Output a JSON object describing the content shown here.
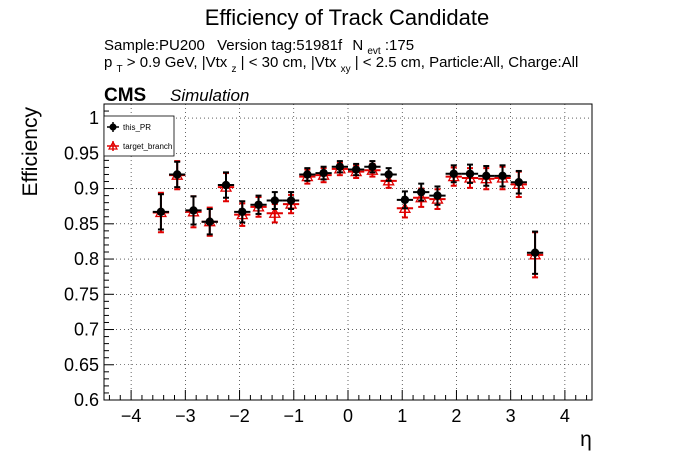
{
  "chart_data": {
    "type": "scatter",
    "title": "Efficiency of Track Candidate",
    "subtitle_line1": {
      "sample": "Sample:PU200",
      "version": "Version tag:51981f",
      "nevt_label": "N",
      "nevt_sub": "evt",
      "nevt_value": ":175"
    },
    "subtitle_line2": {
      "p": "p",
      "p_sub": "T",
      "part1": " > 0.9 GeV, |Vtx",
      "z_sub": "z",
      "part2": "| < 30 cm, |Vtx",
      "xy_sub": "xy",
      "part3": "| < 2.5 cm, Particle:All, Charge:All"
    },
    "cms_label": "CMS",
    "cms_sublabel": "Simulation",
    "xlabel": "η",
    "ylabel": "Efficiency",
    "xlim": [
      -4.5,
      4.5
    ],
    "ylim": [
      0.6,
      1.02
    ],
    "x_ticks": [
      "−4",
      "−3",
      "−2",
      "−1",
      "0",
      "1",
      "2",
      "3",
      "4"
    ],
    "x_tick_values": [
      -4,
      -3,
      -2,
      -1,
      0,
      1,
      2,
      3,
      4
    ],
    "y_ticks": [
      "0.6",
      "0.65",
      "0.7",
      "0.75",
      "0.8",
      "0.85",
      "0.9",
      "0.95",
      "1"
    ],
    "y_tick_values": [
      0.6,
      0.65,
      0.7,
      0.75,
      0.8,
      0.85,
      0.9,
      0.95,
      1.0
    ],
    "grid": true,
    "legend_position": "top-left",
    "x_half_width": 0.15,
    "series": [
      {
        "name": "this_PR",
        "color": "#000000",
        "marker": "filled-circle",
        "points": [
          {
            "x": -3.45,
            "y": 0.867,
            "err": 0.025
          },
          {
            "x": -3.15,
            "y": 0.92,
            "err": 0.018
          },
          {
            "x": -2.85,
            "y": 0.869,
            "err": 0.02
          },
          {
            "x": -2.55,
            "y": 0.853,
            "err": 0.018
          },
          {
            "x": -2.25,
            "y": 0.905,
            "err": 0.018
          },
          {
            "x": -1.95,
            "y": 0.867,
            "err": 0.015
          },
          {
            "x": -1.65,
            "y": 0.877,
            "err": 0.013
          },
          {
            "x": -1.35,
            "y": 0.883,
            "err": 0.012
          },
          {
            "x": -1.05,
            "y": 0.883,
            "err": 0.012
          },
          {
            "x": -0.75,
            "y": 0.92,
            "err": 0.009
          },
          {
            "x": -0.45,
            "y": 0.922,
            "err": 0.009
          },
          {
            "x": -0.15,
            "y": 0.931,
            "err": 0.008
          },
          {
            "x": 0.15,
            "y": 0.927,
            "err": 0.008
          },
          {
            "x": 0.45,
            "y": 0.931,
            "err": 0.008
          },
          {
            "x": 0.75,
            "y": 0.92,
            "err": 0.009
          },
          {
            "x": 1.05,
            "y": 0.884,
            "err": 0.012
          },
          {
            "x": 1.35,
            "y": 0.895,
            "err": 0.012
          },
          {
            "x": 1.65,
            "y": 0.89,
            "err": 0.013
          },
          {
            "x": 1.95,
            "y": 0.921,
            "err": 0.012
          },
          {
            "x": 2.25,
            "y": 0.921,
            "err": 0.013
          },
          {
            "x": 2.55,
            "y": 0.918,
            "err": 0.014
          },
          {
            "x": 2.85,
            "y": 0.918,
            "err": 0.015
          },
          {
            "x": 3.15,
            "y": 0.909,
            "err": 0.016
          },
          {
            "x": 3.45,
            "y": 0.809,
            "err": 0.03
          }
        ]
      },
      {
        "name": "target_branch",
        "color": "#e00000",
        "marker": "open-triangle",
        "points": [
          {
            "x": -3.45,
            "y": 0.866,
            "err": 0.028
          },
          {
            "x": -3.15,
            "y": 0.919,
            "err": 0.02
          },
          {
            "x": -2.85,
            "y": 0.867,
            "err": 0.022
          },
          {
            "x": -2.55,
            "y": 0.853,
            "err": 0.02
          },
          {
            "x": -2.25,
            "y": 0.902,
            "err": 0.02
          },
          {
            "x": -1.95,
            "y": 0.863,
            "err": 0.016
          },
          {
            "x": -1.65,
            "y": 0.874,
            "err": 0.014
          },
          {
            "x": -1.35,
            "y": 0.865,
            "err": 0.013
          },
          {
            "x": -1.05,
            "y": 0.878,
            "err": 0.013
          },
          {
            "x": -0.75,
            "y": 0.917,
            "err": 0.01
          },
          {
            "x": -0.45,
            "y": 0.919,
            "err": 0.01
          },
          {
            "x": -0.15,
            "y": 0.928,
            "err": 0.009
          },
          {
            "x": 0.15,
            "y": 0.924,
            "err": 0.009
          },
          {
            "x": 0.45,
            "y": 0.926,
            "err": 0.009
          },
          {
            "x": 0.75,
            "y": 0.911,
            "err": 0.01
          },
          {
            "x": 1.05,
            "y": 0.872,
            "err": 0.013
          },
          {
            "x": 1.35,
            "y": 0.887,
            "err": 0.013
          },
          {
            "x": 1.65,
            "y": 0.885,
            "err": 0.014
          },
          {
            "x": 1.95,
            "y": 0.917,
            "err": 0.013
          },
          {
            "x": 2.25,
            "y": 0.915,
            "err": 0.014
          },
          {
            "x": 2.55,
            "y": 0.914,
            "err": 0.015
          },
          {
            "x": 2.85,
            "y": 0.915,
            "err": 0.016
          },
          {
            "x": 3.15,
            "y": 0.906,
            "err": 0.018
          },
          {
            "x": 3.45,
            "y": 0.806,
            "err": 0.032
          }
        ]
      }
    ]
  }
}
